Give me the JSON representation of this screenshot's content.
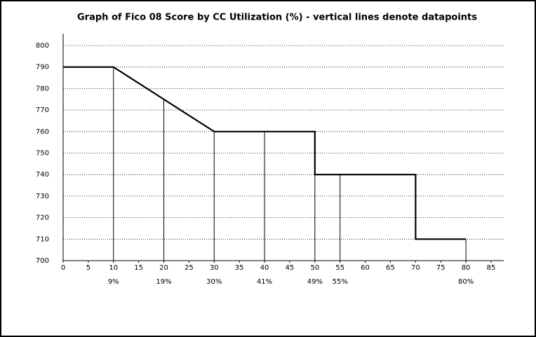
{
  "chart_data": {
    "type": "line",
    "title": "Graph of Fico 08 Score by CC Utilization (%) - vertical lines denote datapoints",
    "x": [
      0,
      10,
      20,
      30,
      40,
      50,
      50,
      55,
      70,
      70,
      80
    ],
    "values": [
      790,
      790,
      775,
      760,
      760,
      760,
      740,
      740,
      740,
      710,
      710
    ],
    "color": "#000000",
    "datapoints": [
      {
        "x": 10,
        "y": 790,
        "label": "9%"
      },
      {
        "x": 20,
        "y": 775,
        "label": "19%"
      },
      {
        "x": 30,
        "y": 760,
        "label": "30%"
      },
      {
        "x": 40,
        "y": 760,
        "label": "41%"
      },
      {
        "x": 50,
        "y": 760,
        "label": "49%"
      },
      {
        "x": 55,
        "y": 740,
        "label": "55%"
      },
      {
        "x": 80,
        "y": 710,
        "label": "80%"
      }
    ],
    "xlim": [
      0,
      85
    ],
    "xticks": [
      0,
      5,
      10,
      15,
      20,
      25,
      30,
      35,
      40,
      45,
      50,
      55,
      60,
      65,
      70,
      75,
      80,
      85
    ],
    "ylim": [
      700,
      800
    ],
    "yticks": [
      700,
      710,
      720,
      730,
      740,
      750,
      760,
      770,
      780,
      790,
      800
    ],
    "grid": true
  }
}
